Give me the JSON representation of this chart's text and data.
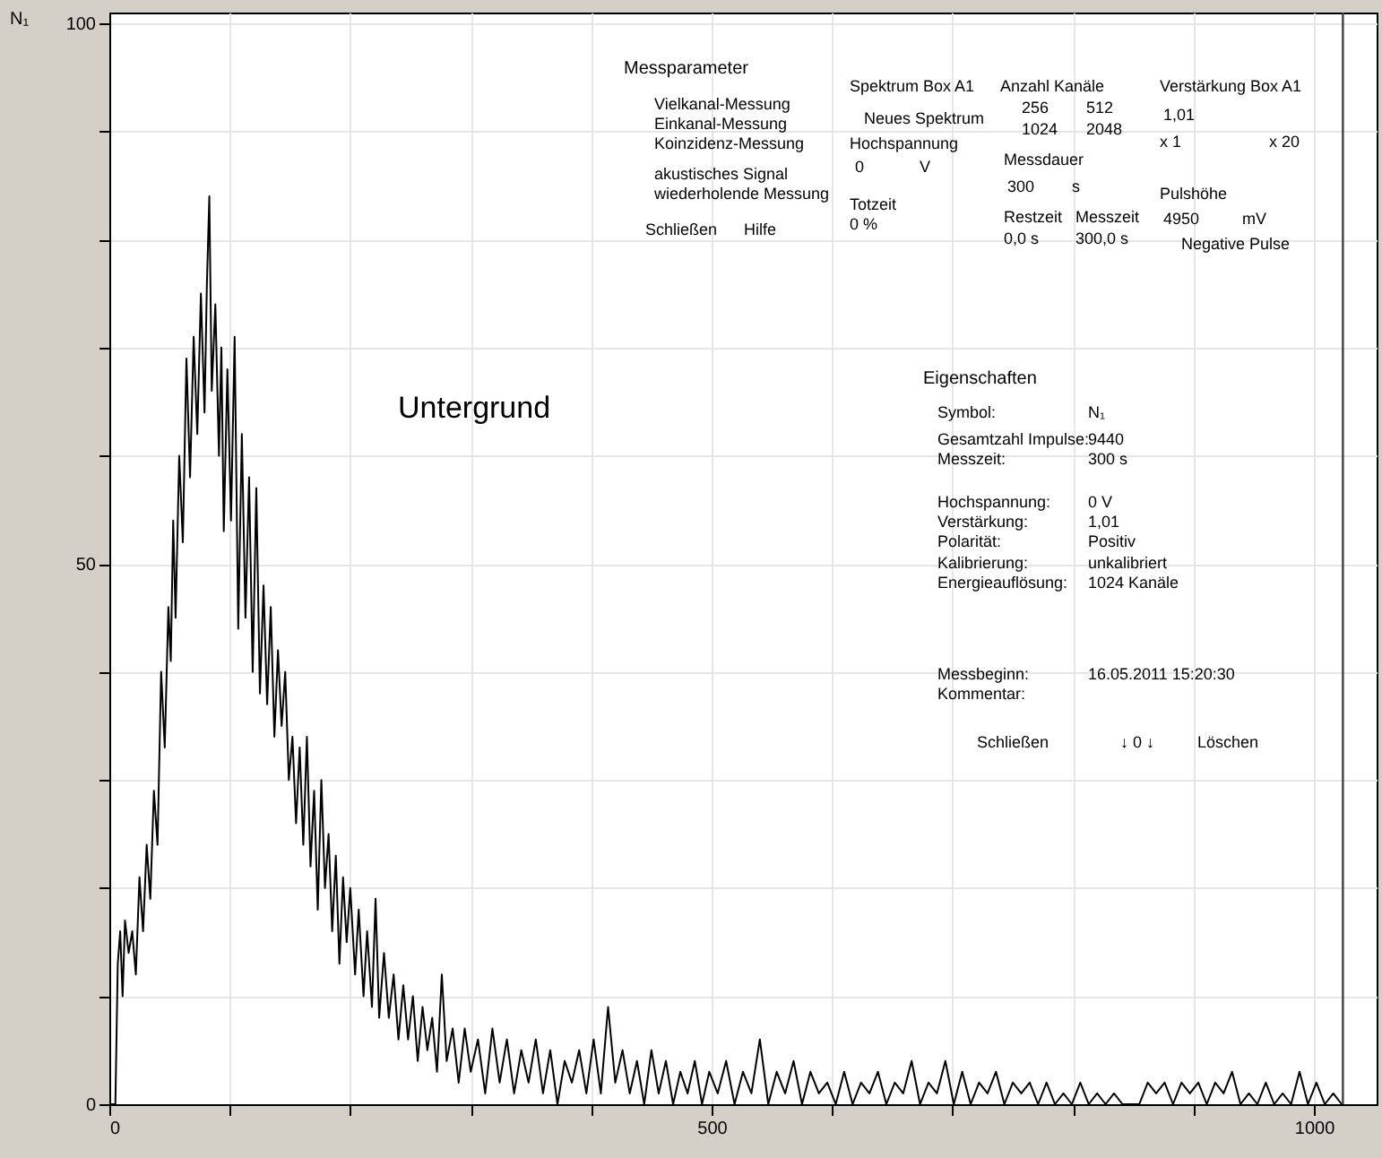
{
  "chart_data": {
    "type": "line",
    "ylabel": "N₁",
    "xlim": [
      0,
      1052
    ],
    "ylim": [
      0,
      101
    ],
    "xticks": [
      0,
      {
        "value": 100,
        "label": null
      },
      {
        "value": 200,
        "label": null
      },
      {
        "value": 300,
        "label": null
      },
      {
        "value": 400,
        "label": null
      },
      500,
      {
        "value": 600,
        "label": null
      },
      {
        "value": 700,
        "label": null
      },
      {
        "value": 800,
        "label": null
      },
      {
        "value": 900,
        "label": null
      },
      1000
    ],
    "yticks": [
      0,
      {
        "value": 10,
        "label": null
      },
      {
        "value": 20,
        "label": null
      },
      {
        "value": 30,
        "label": null
      },
      {
        "value": 40,
        "label": null
      },
      50,
      {
        "value": 60,
        "label": null
      },
      {
        "value": 70,
        "label": null
      },
      {
        "value": 80,
        "label": null
      },
      {
        "value": 90,
        "label": null
      },
      100
    ],
    "grid": true,
    "marker": "none",
    "line_style": "solid",
    "ref_lines": [
      {
        "axis": "x",
        "value": 1024,
        "color": "#404040"
      }
    ],
    "series": [
      {
        "color": "#000000",
        "x": [
          0,
          5,
          7,
          9,
          11,
          13,
          16,
          19,
          22,
          25,
          28,
          31,
          34,
          37,
          40,
          43,
          46,
          49,
          51,
          53,
          55,
          58,
          61,
          64,
          67,
          70,
          73,
          76,
          79,
          81,
          83,
          85,
          88,
          91,
          93,
          95,
          98,
          101,
          104,
          107,
          110,
          113,
          116,
          119,
          122,
          125,
          128,
          131,
          134,
          137,
          140,
          143,
          146,
          149,
          152,
          155,
          158,
          161,
          164,
          167,
          170,
          173,
          176,
          179,
          182,
          185,
          188,
          191,
          194,
          197,
          200,
          204,
          207,
          211,
          214,
          218,
          221,
          224,
          228,
          232,
          236,
          240,
          244,
          248,
          252,
          256,
          260,
          264,
          268,
          272,
          276,
          280,
          285,
          290,
          295,
          300,
          306,
          312,
          318,
          324,
          330,
          336,
          342,
          348,
          354,
          360,
          366,
          372,
          378,
          384,
          390,
          396,
          402,
          408,
          414,
          420,
          426,
          432,
          438,
          444,
          450,
          456,
          462,
          468,
          474,
          480,
          486,
          492,
          498,
          505,
          512,
          519,
          526,
          533,
          540,
          547,
          554,
          561,
          568,
          575,
          582,
          589,
          596,
          603,
          610,
          617,
          624,
          631,
          638,
          645,
          652,
          659,
          666,
          673,
          680,
          687,
          694,
          701,
          708,
          715,
          722,
          729,
          736,
          743,
          750,
          757,
          764,
          771,
          778,
          785,
          792,
          799,
          806,
          813,
          820,
          827,
          834,
          841,
          848,
          855,
          862,
          869,
          876,
          883,
          890,
          897,
          904,
          911,
          918,
          925,
          932,
          939,
          946,
          953,
          960,
          967,
          974,
          981,
          988,
          995,
          1002,
          1009,
          1016,
          1023
        ],
        "values": [
          0,
          0,
          13,
          16,
          10,
          17,
          14,
          16,
          12,
          21,
          16,
          24,
          19,
          29,
          24,
          40,
          33,
          46,
          41,
          54,
          45,
          60,
          52,
          69,
          58,
          71,
          62,
          75,
          64,
          76,
          84,
          66,
          74,
          60,
          70,
          53,
          68,
          54,
          71,
          44,
          62,
          45,
          58,
          40,
          57,
          38,
          48,
          37,
          46,
          34,
          42,
          35,
          40,
          30,
          34,
          26,
          33,
          24,
          34,
          22,
          29,
          18,
          30,
          20,
          25,
          16,
          23,
          13,
          21,
          15,
          20,
          12,
          18,
          10,
          16,
          9,
          19,
          8,
          14,
          8,
          12,
          6,
          11,
          6,
          10,
          4,
          9,
          5,
          8,
          3,
          12,
          4,
          7,
          2,
          7,
          3,
          6,
          1,
          7,
          2,
          6,
          1,
          5,
          2,
          6,
          1,
          5,
          0,
          4,
          2,
          5,
          1,
          6,
          1,
          9,
          2,
          5,
          1,
          4,
          0,
          5,
          1,
          4,
          0,
          3,
          1,
          4,
          0,
          3,
          1,
          4,
          0,
          3,
          1,
          6,
          0,
          3,
          1,
          4,
          0,
          3,
          1,
          2,
          0,
          3,
          0,
          2,
          1,
          3,
          0,
          2,
          1,
          4,
          0,
          2,
          1,
          4,
          0,
          3,
          0,
          2,
          1,
          3,
          0,
          2,
          1,
          2,
          0,
          2,
          0,
          1,
          0,
          2,
          0,
          1,
          0,
          1,
          0,
          0,
          0,
          2,
          1,
          2,
          0,
          2,
          1,
          2,
          0,
          2,
          1,
          3,
          0,
          1,
          0,
          2,
          0,
          1,
          0,
          3,
          0,
          2,
          0,
          1,
          0
        ]
      }
    ],
    "annotations": [
      "Untergrund",
      "Messparameter",
      "Vielkanal-Messung",
      "Einkanal-Messung",
      "Koinzidenz-Messung",
      "akustisches Signal",
      "wiederholende Messung",
      "Schließen",
      "Hilfe",
      "Spektrum  Box A1",
      "Neues Spektrum",
      "Hochspannung",
      "0",
      "V",
      "Totzeit",
      "0 %",
      "Anzahl Kanäle",
      "256",
      "512",
      "1024",
      "2048",
      "Messdauer",
      "300",
      "s",
      "Restzeit",
      "Messzeit",
      "0,0 s",
      "300,0 s",
      "Verstärkung Box A1",
      "1,01",
      "x 1",
      "x 20",
      "Pulshöhe",
      "4950",
      "mV",
      "Negative Pulse",
      "Eigenschaften",
      "Symbol:",
      "N₁",
      "Gesamtzahl Impulse:",
      "9440",
      "Messzeit:",
      "300 s",
      "Hochspannung:",
      "0 V",
      "Verstärkung:",
      "1,01",
      "Polarität:",
      "Positiv",
      "Kalibrierung:",
      "unkalibriert",
      "Energieauflösung:",
      "1024 Kanäle",
      "Messbeginn:",
      "16.05.2011 15:20:30",
      "Kommentar:",
      "Schließen",
      "↓ 0 ↓",
      "Löschen"
    ]
  }
}
